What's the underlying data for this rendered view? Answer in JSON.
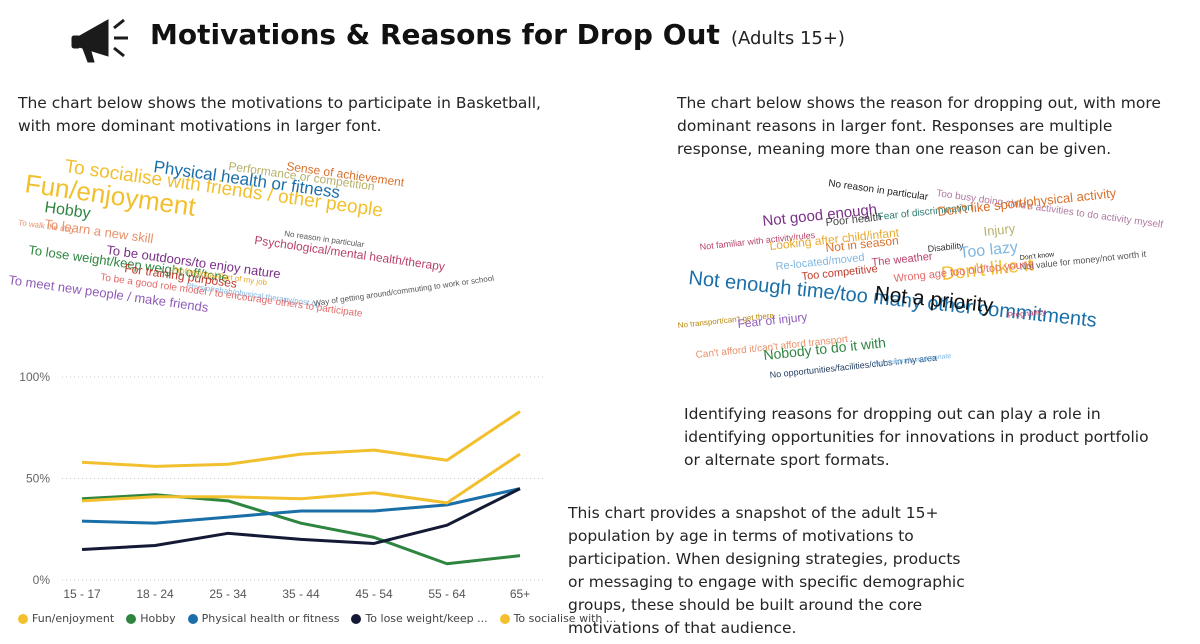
{
  "title": "Motivations & Reasons for Drop Out",
  "title_suffix": "(Adults 15+)",
  "icons": {
    "header": "megaphone-icon"
  },
  "text": {
    "motivations_intro": "The chart below shows the motivations to participate in Basketball, with more dominant motivations in larger font.",
    "dropout_intro": "The chart below shows the reason for dropping out, with more dominant reasons in larger font. Responses are multiple response, meaning more than one reason can be given.",
    "dropout_note": "Identifying reasons for dropping out can play a role in identifying opportunities for innovations in product portfolio or alternate sport formats.",
    "age_note": "This chart provides a snapshot of the adult 15+ population by age in terms of motivations to participation. When designing strategies, products or messaging to engage with specific demographic groups, these should be built around the core motivations of that audience."
  },
  "wordcloud_motivations": [
    {
      "text": "Fun/enjoyment",
      "color": "#F2C02E"
    },
    {
      "text": "To socialise with friends / other people",
      "color": "#F2C02E"
    },
    {
      "text": "Physical health or fitness",
      "color": "#1A6FA8"
    },
    {
      "text": "Performance or competition",
      "color": "#B7B06A"
    },
    {
      "text": "Sense of achievement",
      "color": "#D9702A"
    },
    {
      "text": "Hobby",
      "color": "#2E8540"
    },
    {
      "text": "To walk the dog",
      "color": "#E8906A"
    },
    {
      "text": "To learn a new skill",
      "color": "#E8906A"
    },
    {
      "text": "To lose weight/keep weight off/tone",
      "color": "#2E8540"
    },
    {
      "text": "To be outdoors/to enjoy nature",
      "color": "#7A2F88"
    },
    {
      "text": "No reason in particular",
      "color": "#555555"
    },
    {
      "text": "Psychological/mental health/therapy",
      "color": "#B8416A"
    },
    {
      "text": "To meet new people / make friends",
      "color": "#8E5BB8"
    },
    {
      "text": "For training purposes",
      "color": "#C0392B"
    },
    {
      "text": "Professional/Part of my job",
      "color": "#E8A92C"
    },
    {
      "text": "Physio/rehab/physical therapy/post op",
      "color": "#7FB6E0"
    },
    {
      "text": "Way of getting around/commuting to work or school",
      "color": "#555555"
    },
    {
      "text": "To be a good role model / to encourage others to participate",
      "color": "#E36A6A"
    }
  ],
  "wordcloud_dropout": [
    {
      "text": "No reason in particular",
      "color": "#222222"
    },
    {
      "text": "Too busy doing child's activities to do activity myself",
      "color": "#B07AA1"
    },
    {
      "text": "Not good enough",
      "color": "#7A2F88"
    },
    {
      "text": "Poor health",
      "color": "#444444"
    },
    {
      "text": "Fear of discrimination",
      "color": "#2C7A6E"
    },
    {
      "text": "Don't like sport/physical activity",
      "color": "#D9702A"
    },
    {
      "text": "Not familiar with activity/rules",
      "color": "#B8416A"
    },
    {
      "text": "Looking after child/infant",
      "color": "#E8A92C"
    },
    {
      "text": "Injury",
      "color": "#B7B06A"
    },
    {
      "text": "Not in season",
      "color": "#D9702A"
    },
    {
      "text": "Disability",
      "color": "#333333"
    },
    {
      "text": "Too lazy",
      "color": "#7FB6E0"
    },
    {
      "text": "Don't know",
      "color": "#222222"
    },
    {
      "text": "Re-located/moved",
      "color": "#7FB6E0"
    },
    {
      "text": "The weather",
      "color": "#B8416A"
    },
    {
      "text": "Don't like it",
      "color": "#F2C02E"
    },
    {
      "text": "Not value for money/not worth it",
      "color": "#555555"
    },
    {
      "text": "Too competitive",
      "color": "#C0392B"
    },
    {
      "text": "Wrong age too old/too young",
      "color": "#E36A6A"
    },
    {
      "text": "Not enough time/too many other commitments",
      "color": "#1A6FA8"
    },
    {
      "text": "Not a priority",
      "color": "#111111"
    },
    {
      "text": "No transport/can't get there",
      "color": "#B8860B"
    },
    {
      "text": "Fear of injury",
      "color": "#8E5BB8"
    },
    {
      "text": "Pregnancy",
      "color": "#B8416A"
    },
    {
      "text": "Can't afford it/can't afford transport",
      "color": "#E8906A"
    },
    {
      "text": "Nobody to do it with",
      "color": "#2E8540"
    },
    {
      "text": "No opportunities/facilities/clubs in my area",
      "color": "#1F3A5F"
    },
    {
      "text": "Not culturally appropriate",
      "color": "#7FB6E0"
    }
  ],
  "chart_data": {
    "type": "line",
    "categories": [
      "15 - 17",
      "18 - 24",
      "25 - 34",
      "35 - 44",
      "45 - 54",
      "55 - 64",
      "65+"
    ],
    "yticks": [
      "0%",
      "50%",
      "100%"
    ],
    "ylim": [
      0,
      100
    ],
    "grid": true,
    "legend_position": "bottom",
    "series": [
      {
        "name": "Fun/enjoyment",
        "color": "#F2C02E",
        "values": [
          58,
          56,
          57,
          62,
          64,
          59,
          83
        ]
      },
      {
        "name": "Hobby",
        "color": "#2E8540",
        "values": [
          40,
          42,
          39,
          28,
          21,
          8,
          12
        ]
      },
      {
        "name": "Physical health or fitness",
        "color": "#1A6FA8",
        "values": [
          29,
          28,
          31,
          34,
          34,
          37,
          45
        ]
      },
      {
        "name": "To lose weight/keep ...",
        "color": "#141935",
        "values": [
          15,
          17,
          23,
          20,
          18,
          27,
          45
        ]
      },
      {
        "name": "To socialise with ...",
        "color": "#F2C02E",
        "values": [
          39,
          41,
          41,
          40,
          43,
          38,
          62
        ]
      }
    ]
  }
}
